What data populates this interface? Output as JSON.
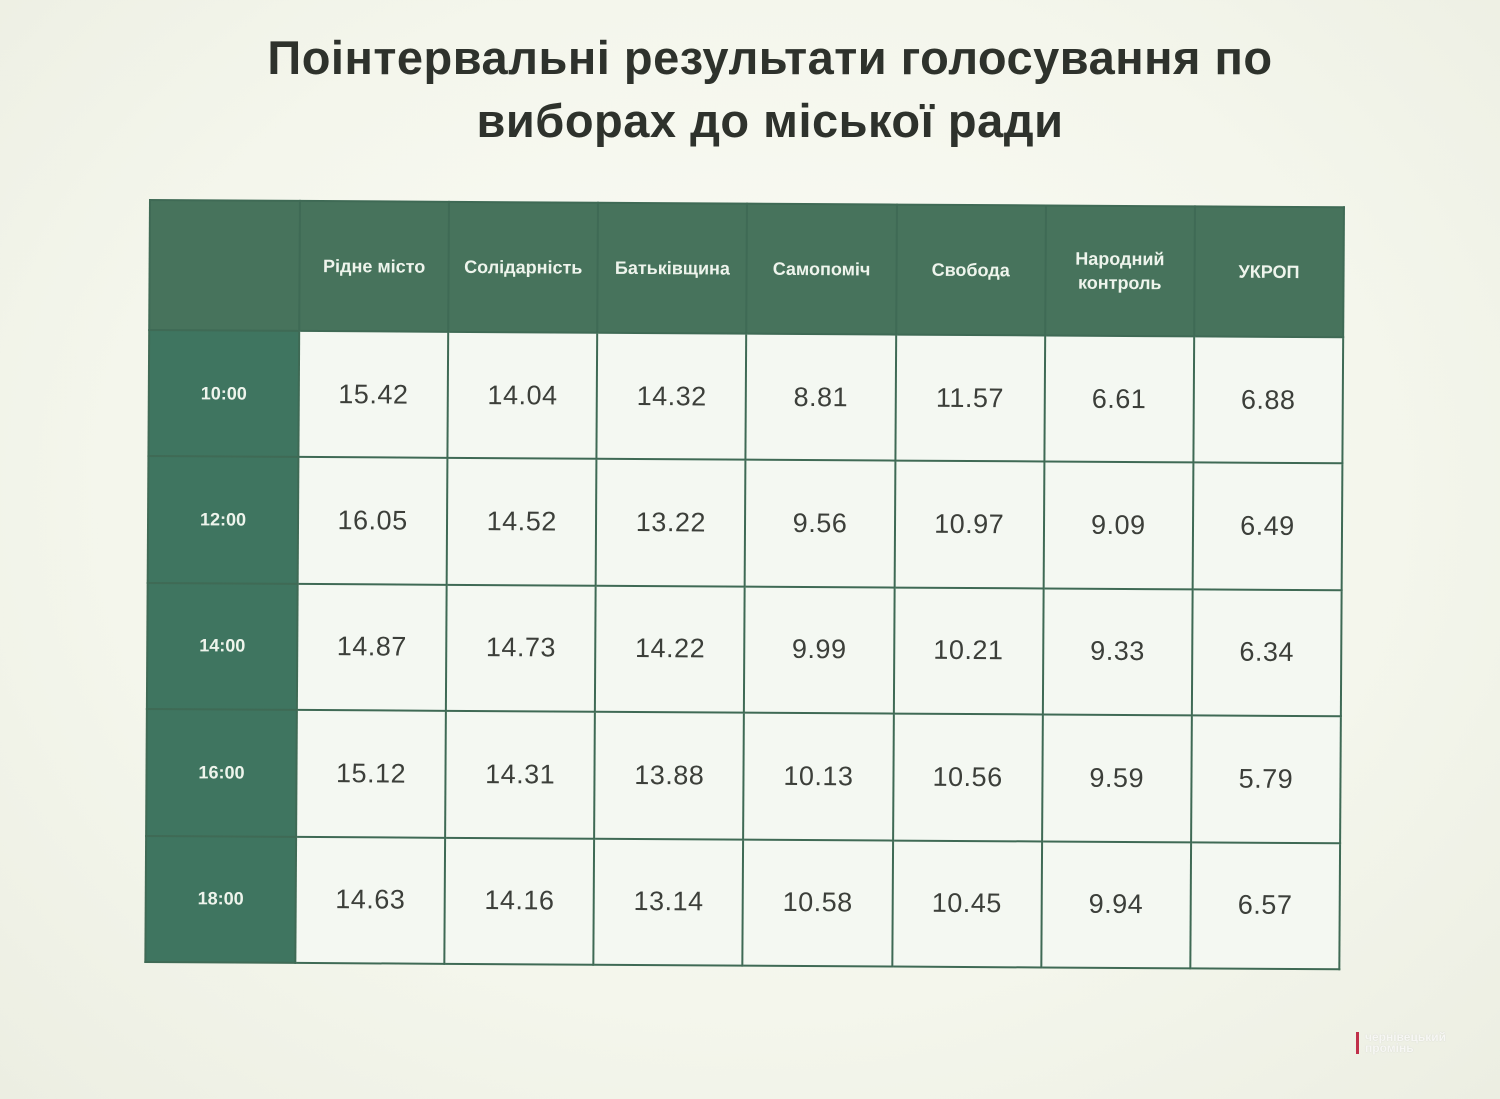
{
  "chart_data": {
    "type": "table",
    "title": [
      "Поінтервальні результати голосування по",
      "виборах до міської ради"
    ],
    "columns": [
      "Рідне місто",
      "Солідарність",
      "Батьківщина",
      "Самопоміч",
      "Свобода",
      "Народний контроль",
      "УКРОП"
    ],
    "rows": [
      {
        "time": "10:00",
        "values": [
          "15.42",
          "14.04",
          "14.32",
          "8.81",
          "11.57",
          "6.61",
          "6.88"
        ]
      },
      {
        "time": "12:00",
        "values": [
          "16.05",
          "14.52",
          "13.22",
          "9.56",
          "10.97",
          "9.09",
          "6.49"
        ]
      },
      {
        "time": "14:00",
        "values": [
          "14.87",
          "14.73",
          "14.22",
          "9.99",
          "10.21",
          "9.33",
          "6.34"
        ]
      },
      {
        "time": "16:00",
        "values": [
          "15.12",
          "14.31",
          "13.88",
          "10.13",
          "10.56",
          "9.59",
          "5.79"
        ]
      },
      {
        "time": "18:00",
        "values": [
          "14.63",
          "14.16",
          "13.14",
          "10.58",
          "10.45",
          "9.94",
          "6.57"
        ]
      }
    ]
  },
  "watermark": {
    "line1": "чернівецький",
    "line2": "промінь"
  },
  "colors": {
    "header_bg": "#47735c",
    "time_bg": "#3f7560",
    "cell_bg": "#f4f8f2",
    "border": "#3f6a55",
    "title": "#2e322c"
  }
}
